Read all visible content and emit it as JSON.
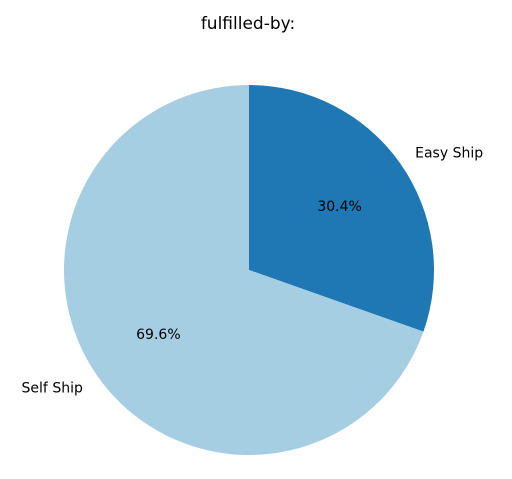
{
  "chart_data": {
    "type": "pie",
    "title": "fulfilled-by:",
    "slices": [
      {
        "label": "Easy Ship",
        "value": 30.4,
        "pct_label": "30.4%",
        "color": "#1f78b4"
      },
      {
        "label": "Self Ship",
        "value": 69.6,
        "pct_label": "69.6%",
        "color": "#a6cee3"
      }
    ],
    "start_angle_deg": 90,
    "direction": "clockwise"
  }
}
